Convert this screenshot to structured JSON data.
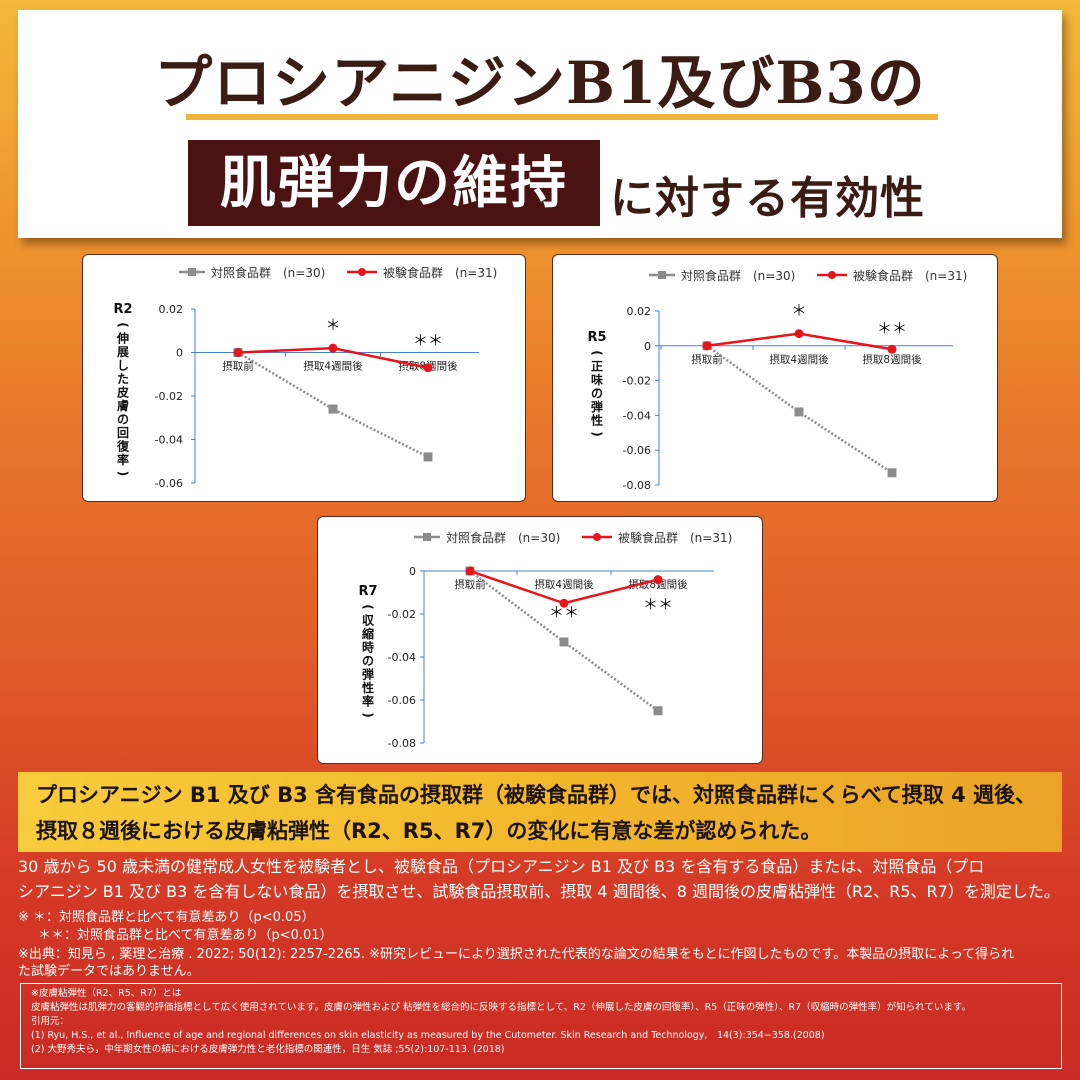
{
  "header": {
    "line1": "プロシアニジンB1及びB3の",
    "highlight": "肌弾力の維持",
    "line2_tail": "に対する有効性"
  },
  "legend": {
    "control": "対照食品群　(n=30)",
    "test": "被験食品群　(n=31)"
  },
  "colors": {
    "control_series": "#8c8c8c",
    "test_series": "#e8141c",
    "axis_line": "#4a7fd8",
    "title_rule": "#f0b23a",
    "title_box": "#4a1212"
  },
  "chart_data": [
    {
      "type": "line",
      "id": "r2",
      "ylabel_code": "R2",
      "ylabel": "（伸展した皮膚の回復率）",
      "categories": [
        "摂取前",
        "摂取4週間後",
        "摂取8週間後"
      ],
      "series": [
        {
          "name": "対照食品群　(n=30)",
          "values": [
            0,
            -0.026,
            -0.048
          ]
        },
        {
          "name": "被験食品群　(n=31)",
          "values": [
            0,
            0.002,
            -0.007
          ]
        }
      ],
      "ylim": [
        -0.06,
        0.02
      ],
      "yticks": [
        "0.02",
        "0",
        "-0.02",
        "-0.04",
        "-0.06"
      ],
      "annotations": [
        "＊",
        "＊＊"
      ]
    },
    {
      "type": "line",
      "id": "r5",
      "ylabel_code": "R5",
      "ylabel": "（正味の弾性）",
      "categories": [
        "摂取前",
        "摂取4週間後",
        "摂取8週間後"
      ],
      "series": [
        {
          "name": "対照食品群　(n=30)",
          "values": [
            0,
            -0.038,
            -0.073
          ]
        },
        {
          "name": "被験食品群　(n=31)",
          "values": [
            0,
            0.007,
            -0.002
          ]
        }
      ],
      "ylim": [
        -0.08,
        0.02
      ],
      "yticks": [
        "0.02",
        "0",
        "-0.02",
        "-0.04",
        "-0.06",
        "-0.08"
      ],
      "annotations": [
        "＊",
        "＊＊"
      ]
    },
    {
      "type": "line",
      "id": "r7",
      "ylabel_code": "R7",
      "ylabel": "（収縮時の弾性率）",
      "categories": [
        "摂取前",
        "摂取4週間後",
        "摂取8週間後"
      ],
      "series": [
        {
          "name": "対照食品群　(n=30)",
          "values": [
            0,
            -0.033,
            -0.065
          ]
        },
        {
          "name": "被験食品群　(n=31)",
          "values": [
            0,
            -0.015,
            -0.004
          ]
        }
      ],
      "ylim": [
        -0.08,
        0
      ],
      "yticks": [
        "0",
        "-0.02",
        "-0.04",
        "-0.06",
        "-0.08"
      ],
      "annotations": [
        "＊＊",
        "＊＊"
      ]
    }
  ],
  "summary": {
    "line1": "プロシアニジン B1 及び B3 含有食品の摂取群（被験食品群）では、対照食品群にくらべて摂取 4 週後、",
    "line2": "摂取８週後における皮膚粘弾性（R2、R5、R7）の変化に有意な差が認められた。"
  },
  "description": {
    "line1": "30 歳から 50 歳未満の健常成人女性を被験者とし、被験食品（プロシアニジン B1 及び B3 を含有する食品）または、対照食品（プロ",
    "line2": "シアニジン B1 及び B3 を含有しない食品）を摂取させ、試験食品摂取前、摂取 4 週間後、8 週間後の皮膚粘弾性（R2、R5、R7）を測定した。"
  },
  "notes": {
    "sig1": "※ ＊：対照食品群と比べて有意差あり（p<0.05）",
    "sig2": "＊＊：対照食品群と比べて有意差あり（p<0.01）",
    "source1": "※出典：知見ら , 薬理と治療 . 2022; 50(12): 2257-2265. ※研究レビューにより選択された代表的な論文の結果をもとに作図したものです。本製品の摂取によって得られ",
    "source2": "た試験データではありません。"
  },
  "references": {
    "l1": "※皮膚粘弾性（R2、R5、R7）とは",
    "l2": "皮膚粘弾性は肌弾力の客観的評価指標として広く使用されています。皮膚の弾性および 粘弾性を総合的に反映する指標として、R2（伸展した皮膚の回復率）、R5（正味の弾性）、R7（収縮時の弾性率）が知られています。",
    "l3": "引用元：",
    "l4": "(1) Ryu, H.S., et al., Influence of age and regional differences on skin elasticity as measured by the Cutometer. Skin Research and Technology,　14(3):354−358.(2008)",
    "l5": "(2) 大野秀夫ら，中年期女性の頬における皮膚弾力性と老化指標の関連性，日生 気誌 ;55(2):107-113. (2018)"
  }
}
